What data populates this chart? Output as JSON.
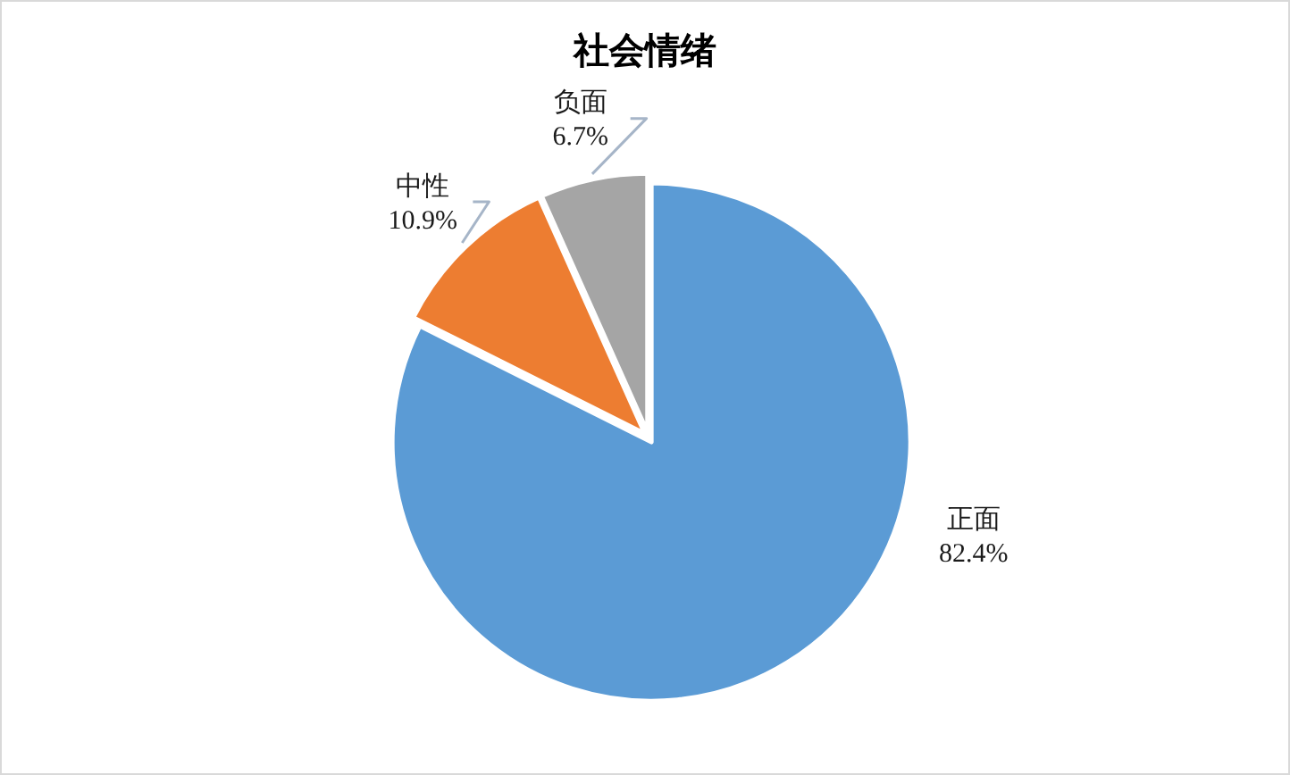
{
  "chart_data": {
    "type": "pie",
    "title": "社会情绪",
    "categories": [
      "正面",
      "中性",
      "负面"
    ],
    "values": [
      82.4,
      10.9,
      6.7
    ],
    "colors": [
      "#5b9bd5",
      "#ed7d31",
      "#a5a5a5"
    ],
    "value_labels": [
      "82.4%",
      "10.9%",
      "6.7%"
    ]
  }
}
